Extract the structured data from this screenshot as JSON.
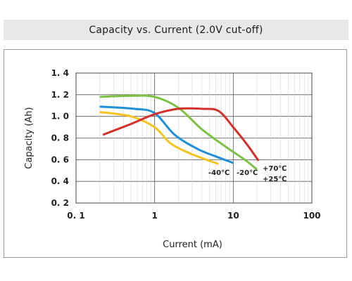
{
  "chart_data": {
    "type": "line",
    "title": "Capacity vs. Current (2.0V cut-off)",
    "xlabel": "Current (mA)",
    "ylabel": "Capacity (Ah)",
    "x_scale": "log",
    "xlim": [
      0.1,
      100
    ],
    "ylim": [
      0.2,
      1.4
    ],
    "x_ticks": [
      0.1,
      1,
      10,
      100
    ],
    "x_tick_labels": [
      "0. 1",
      "1",
      "10",
      "100"
    ],
    "y_ticks": [
      0.2,
      0.4,
      0.6,
      0.8,
      1.0,
      1.2,
      1.4
    ],
    "y_tick_labels": [
      "0. 2",
      "0. 4",
      "0. 6",
      "0. 8",
      "1. 0",
      "1. 2",
      "1. 4"
    ],
    "grid": true,
    "series": [
      {
        "name": "-40℃",
        "color": "#f5c41c",
        "points": [
          [
            0.2,
            1.04
          ],
          [
            0.5,
            1.0
          ],
          [
            1.0,
            0.9
          ],
          [
            1.6,
            0.75
          ],
          [
            3.0,
            0.65
          ],
          [
            6.5,
            0.56
          ]
        ]
      },
      {
        "name": "-20℃",
        "color": "#1f8fd8",
        "points": [
          [
            0.2,
            1.09
          ],
          [
            0.55,
            1.07
          ],
          [
            1.0,
            1.03
          ],
          [
            1.8,
            0.83
          ],
          [
            3.5,
            0.7
          ],
          [
            6.0,
            0.63
          ],
          [
            10.0,
            0.57
          ]
        ]
      },
      {
        "name": "+25℃",
        "color": "#7cc242",
        "points": [
          [
            0.2,
            1.18
          ],
          [
            0.5,
            1.19
          ],
          [
            1.0,
            1.18
          ],
          [
            2.0,
            1.08
          ],
          [
            4.0,
            0.88
          ],
          [
            8.0,
            0.72
          ],
          [
            14.0,
            0.6
          ],
          [
            20.0,
            0.51
          ]
        ]
      },
      {
        "name": "+70℃",
        "color": "#d3302a",
        "points": [
          [
            0.22,
            0.83
          ],
          [
            0.5,
            0.93
          ],
          [
            1.0,
            1.02
          ],
          [
            2.0,
            1.07
          ],
          [
            4.0,
            1.07
          ],
          [
            6.5,
            1.05
          ],
          [
            10.0,
            0.9
          ],
          [
            15.0,
            0.74
          ],
          [
            21.0,
            0.59
          ]
        ]
      }
    ]
  }
}
